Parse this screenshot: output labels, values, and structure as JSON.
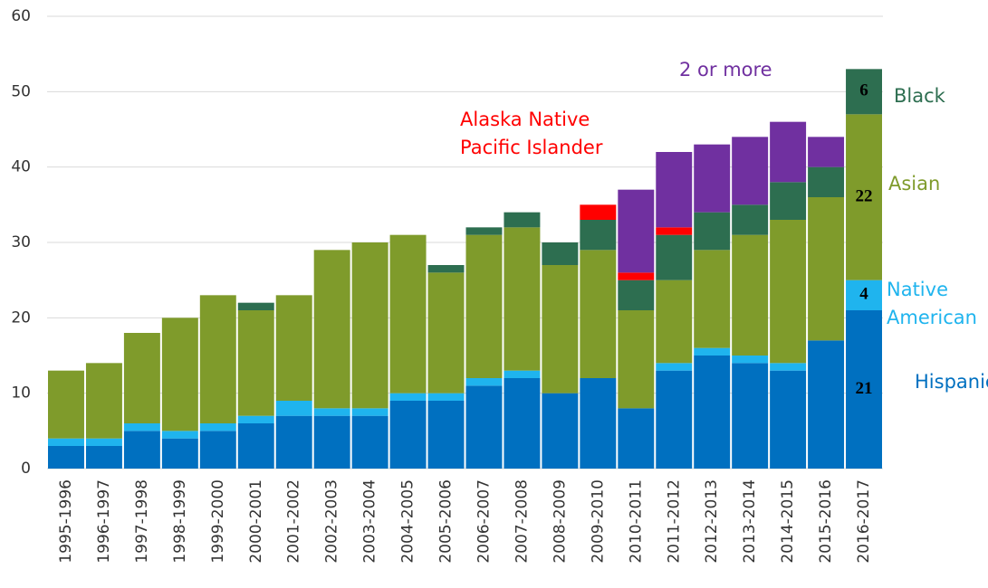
{
  "chart_data": {
    "type": "stacked_bar",
    "categories": [
      "1995-1996",
      "1996-1997",
      "1997-1998",
      "1998-1999",
      "1999-2000",
      "2000-2001",
      "2001-2002",
      "2002-2003",
      "2003-2004",
      "2004-2005",
      "2005-2006",
      "2006-2007",
      "2007-2008",
      "2008-2009",
      "2009-2010",
      "2010-2011",
      "2011-2012",
      "2012-2013",
      "2013-2014",
      "2014-2015",
      "2015-2016",
      "2016-2017"
    ],
    "series": [
      {
        "name": "Hispanic",
        "color": "#0070c0",
        "values": [
          3,
          3,
          5,
          4,
          5,
          6,
          7,
          7,
          7,
          9,
          9,
          11,
          12,
          10,
          12,
          8,
          13,
          15,
          14,
          13,
          17,
          21
        ]
      },
      {
        "name": "Native American",
        "color": "#1fb4ee",
        "values": [
          1,
          1,
          1,
          1,
          1,
          1,
          2,
          1,
          1,
          1,
          1,
          1,
          1,
          0,
          0,
          0,
          1,
          1,
          1,
          1,
          0,
          4
        ]
      },
      {
        "name": "Asian",
        "color": "#7f9b2b",
        "values": [
          9,
          10,
          12,
          15,
          17,
          14,
          14,
          21,
          22,
          21,
          16,
          19,
          19,
          17,
          17,
          13,
          11,
          13,
          16,
          19,
          19,
          22
        ]
      },
      {
        "name": "Black",
        "color": "#2d6e50",
        "values": [
          0,
          0,
          0,
          0,
          0,
          1,
          0,
          0,
          0,
          0,
          1,
          1,
          2,
          3,
          4,
          4,
          6,
          5,
          4,
          5,
          4,
          6
        ]
      },
      {
        "name": "Alaska Native Pacific Islander",
        "color": "#ff0000",
        "values": [
          0,
          0,
          0,
          0,
          0,
          0,
          0,
          0,
          0,
          0,
          0,
          0,
          0,
          0,
          2,
          1,
          1,
          0,
          0,
          0,
          0,
          0
        ]
      },
      {
        "name": "2 or more",
        "color": "#7030a0",
        "values": [
          0,
          0,
          0,
          0,
          0,
          0,
          0,
          0,
          0,
          0,
          0,
          0,
          0,
          0,
          0,
          11,
          10,
          9,
          9,
          8,
          4,
          0
        ]
      }
    ],
    "ylim": [
      0,
      60
    ],
    "yticks": [
      0,
      10,
      20,
      30,
      40,
      50,
      60
    ],
    "grid": true
  }
}
